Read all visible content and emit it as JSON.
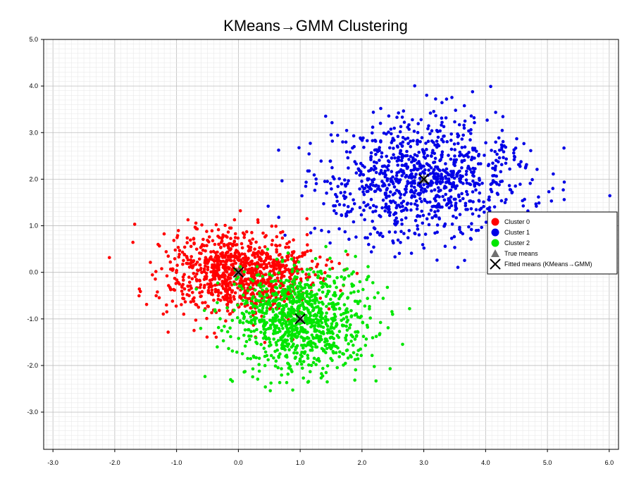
{
  "chart_data": {
    "type": "scatter",
    "title": "KMeans→GMM Clustering",
    "xlabel": "",
    "ylabel": "",
    "xlim": [
      -3.15,
      6.15
    ],
    "ylim": [
      -3.8,
      5.0
    ],
    "x_ticks": [
      -3.0,
      -2.0,
      -1.0,
      0.0,
      1.0,
      2.0,
      3.0,
      4.0,
      5.0,
      6.0
    ],
    "x_tick_labels": [
      "-3.0",
      "-2.0",
      "-1.0",
      "0.0",
      "1.0",
      "2.0",
      "3.0",
      "4.0",
      "5.0",
      "6.0"
    ],
    "y_ticks": [
      -3.0,
      -2.0,
      -1.0,
      0.0,
      1.0,
      2.0,
      3.0,
      4.0,
      5.0
    ],
    "y_tick_labels": [
      "-3.0",
      "-2.0",
      "-1.0",
      "0.0",
      "1.0",
      "2.0",
      "3.0",
      "4.0",
      "5.0"
    ],
    "grid": "on",
    "legend_position": "right",
    "series": [
      {
        "name": "Cluster 0",
        "color": "#ff0000",
        "marker": "circle",
        "approx_count": 1000,
        "center": [
          0.0,
          0.0
        ],
        "spread": [
          0.6,
          0.45
        ]
      },
      {
        "name": "Cluster 1",
        "color": "#0000e6",
        "marker": "circle",
        "approx_count": 1000,
        "center": [
          3.0,
          2.0
        ],
        "spread": [
          0.85,
          0.6
        ]
      },
      {
        "name": "Cluster 2",
        "color": "#00e600",
        "marker": "circle",
        "approx_count": 1000,
        "center": [
          1.0,
          -1.0
        ],
        "spread": [
          0.55,
          0.55
        ]
      }
    ],
    "true_means": {
      "name": "True means",
      "color": "#707070",
      "marker": "triangle",
      "points": [
        [
          0.0,
          0.0
        ],
        [
          3.0,
          2.0
        ],
        [
          1.0,
          -1.0
        ]
      ]
    },
    "fitted_means": {
      "name": "Fitted means (KMeans→GMM)",
      "color": "#000000",
      "marker": "x",
      "points": [
        [
          0.0,
          0.0
        ],
        [
          3.0,
          2.0
        ],
        [
          1.0,
          -1.0
        ]
      ]
    }
  }
}
